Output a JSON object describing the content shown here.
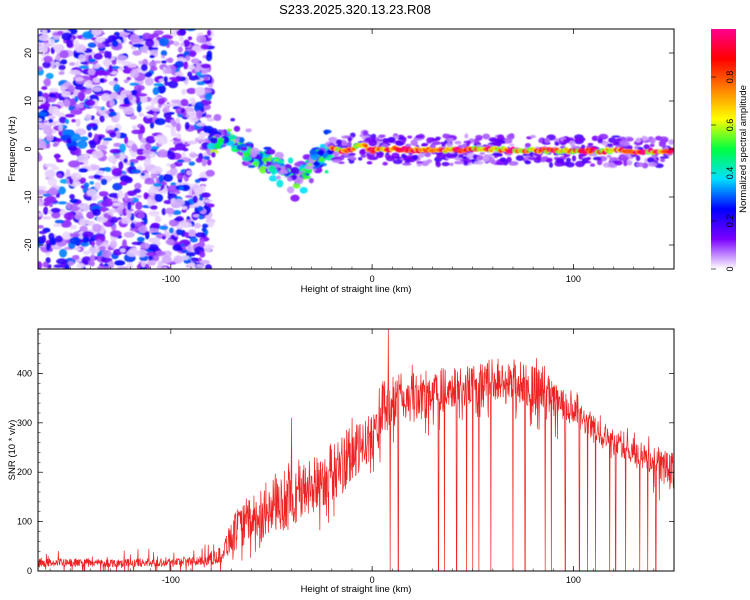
{
  "title": "S233.2025.320.13.23.R08",
  "chart_data": [
    {
      "type": "heatmap",
      "xlabel": "Height of straight line (km)",
      "ylabel": "Frequency (Hz)",
      "xlim": [
        -166,
        150
      ],
      "ylim": [
        -25,
        25
      ],
      "xticks": [
        -100,
        0,
        100
      ],
      "yticks": [
        20,
        10,
        0,
        -10,
        -20
      ],
      "colorbar": {
        "label": "Normalized spectral amplitude",
        "range": [
          0,
          1
        ],
        "ticks": [
          0,
          0.2,
          0.4,
          0.6,
          0.8
        ],
        "colormap": [
          "#ffffff",
          "#7a00ff",
          "#0000ff",
          "#00e0ff",
          "#00ff40",
          "#ffff00",
          "#ff8000",
          "#ff0000",
          "#ff0090"
        ]
      },
      "regions": [
        {
          "x_range": [
            -166,
            -80
          ],
          "freq_range": [
            -25,
            25
          ],
          "amplitude": "scattered low (0.05-0.3)"
        },
        {
          "x_range": [
            -80,
            -20
          ],
          "freq_range": [
            -10,
            6
          ],
          "amplitude": "clustered 0.2-0.6",
          "trend": "frequency dips to about -6 Hz near x=-38"
        },
        {
          "x_range": [
            -20,
            150
          ],
          "freq_range": [
            -1.5,
            1.5
          ],
          "amplitude": "continuous trace 0.5-1.0",
          "center_freq_hz": 0
        }
      ],
      "trace_center": {
        "x": [
          -80,
          -70,
          -60,
          -50,
          -45,
          -40,
          -35,
          -30,
          -25,
          -20,
          -15,
          -10,
          -5,
          0,
          10,
          20,
          40,
          60,
          80,
          100,
          120,
          140,
          148
        ],
        "freq": [
          2,
          2,
          -1,
          -3,
          -4,
          -6,
          -5,
          -3,
          -1,
          0,
          -0.3,
          0,
          0.8,
          -0.3,
          0,
          -0.3,
          -0.2,
          -0.1,
          -0.3,
          -0.4,
          -0.4,
          -0.5,
          -0.5
        ]
      }
    },
    {
      "type": "line",
      "xlabel": "Height of straight line (km)",
      "ylabel": "SNR (10 * v/v)",
      "xlim": [
        -166,
        150
      ],
      "ylim": [
        0,
        490
      ],
      "xticks": [
        -100,
        0,
        100
      ],
      "yticks": [
        0,
        100,
        200,
        300,
        400
      ],
      "color": "#ee2222",
      "envelope_x": [
        -166,
        -140,
        -110,
        -85,
        -75,
        -70,
        -60,
        -50,
        -40,
        -30,
        -20,
        -10,
        0,
        5,
        10,
        20,
        40,
        60,
        80,
        100,
        120,
        140,
        150
      ],
      "envelope_low": [
        8,
        8,
        8,
        10,
        15,
        35,
        60,
        70,
        90,
        110,
        140,
        170,
        230,
        260,
        290,
        300,
        330,
        340,
        330,
        290,
        240,
        190,
        160
      ],
      "envelope_high": [
        25,
        25,
        25,
        30,
        50,
        110,
        150,
        170,
        210,
        230,
        260,
        290,
        320,
        380,
        400,
        400,
        410,
        425,
        420,
        350,
        280,
        250,
        240
      ],
      "spikes": [
        {
          "x": -40,
          "snr": 310
        },
        {
          "x": -10,
          "snr": 310
        },
        {
          "x": 8,
          "snr": 490
        }
      ],
      "dropouts_x": [
        9,
        13,
        33,
        36,
        42,
        47,
        50,
        53,
        59,
        70,
        76,
        86,
        89,
        96,
        103,
        107,
        111,
        118,
        121,
        126,
        133,
        137,
        141
      ]
    }
  ]
}
